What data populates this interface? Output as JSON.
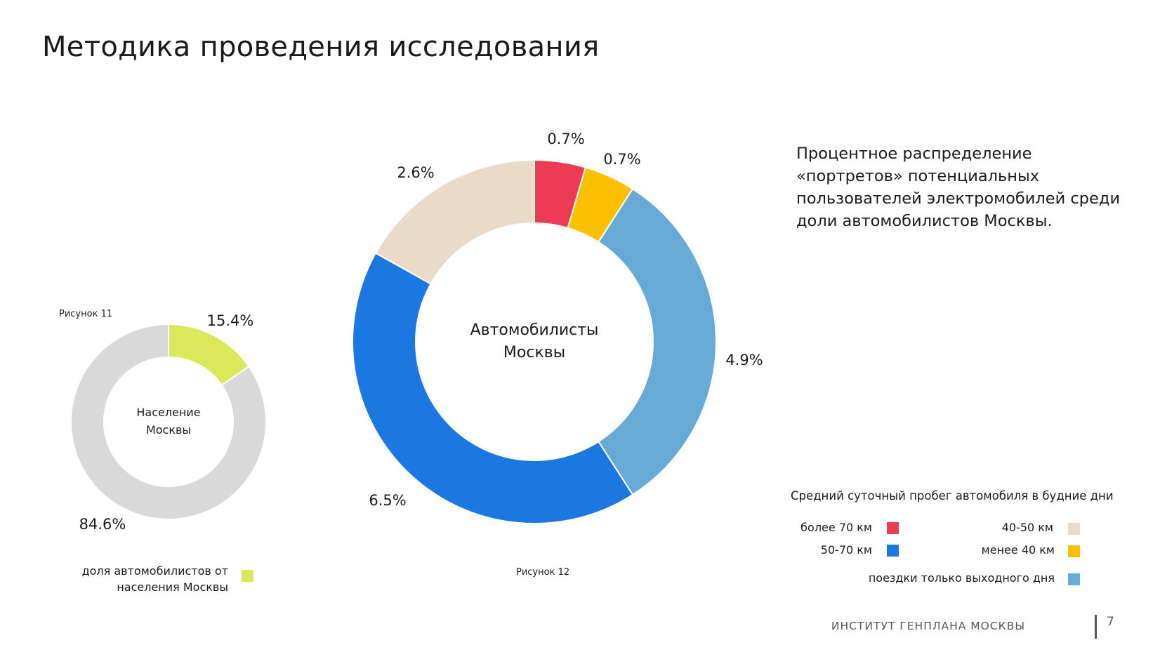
{
  "page": {
    "title": "Методика проведения исследования",
    "description": "Процентное распределение «портретов» потенциальных пользователей электромобилей среди доли автомобилистов Москвы.",
    "footer_org": "ИНСТИТУТ ГЕНПЛАНА МОСКВЫ",
    "page_number": "7"
  },
  "chart_data": [
    {
      "type": "pie",
      "variant": "donut",
      "figure_label": "Рисунок 11",
      "center_text": [
        "Население",
        "Москвы"
      ],
      "slices": [
        {
          "label": "доля автомобилистов от населения Москвы",
          "value": 15.4,
          "display": "15.4%",
          "color": "#dbe85a"
        },
        {
          "label": "",
          "value": 84.6,
          "display": "84.6%",
          "color": "#d9d9d9"
        }
      ],
      "legend": [
        {
          "label": "доля автомобилистов от населения Москвы",
          "color": "#dbe85a"
        }
      ]
    },
    {
      "type": "pie",
      "variant": "donut",
      "figure_label": "Рисунок 12",
      "center_text": [
        "Автомобилисты",
        "Москвы"
      ],
      "slices": [
        {
          "label": "более 70 км",
          "value": 0.7,
          "display": "0.7%",
          "color": "#ee3b55"
        },
        {
          "label": "менее 40 км",
          "value": 0.7,
          "display": "0.7%",
          "color": "#fdc001"
        },
        {
          "label": "поездки только выходного дня",
          "value": 4.9,
          "display": "4.9%",
          "color": "#68aad6"
        },
        {
          "label": "50-70 км",
          "value": 6.5,
          "display": "6.5%",
          "color": "#1a78e0"
        },
        {
          "label": "40-50 км",
          "value": 2.6,
          "display": "2.6%",
          "color": "#eadbc8"
        }
      ],
      "legend_title": "Средний суточный пробег автомобиля в будние дни",
      "legend": [
        {
          "label": "более 70 км",
          "color": "#ee3b55"
        },
        {
          "label": "40-50 км",
          "color": "#eadbc8"
        },
        {
          "label": "50-70 км",
          "color": "#1a78e0"
        },
        {
          "label": "менее 40 км",
          "color": "#fdc001"
        },
        {
          "label": "поездки только выходного дня",
          "color": "#68aad6"
        }
      ]
    }
  ]
}
